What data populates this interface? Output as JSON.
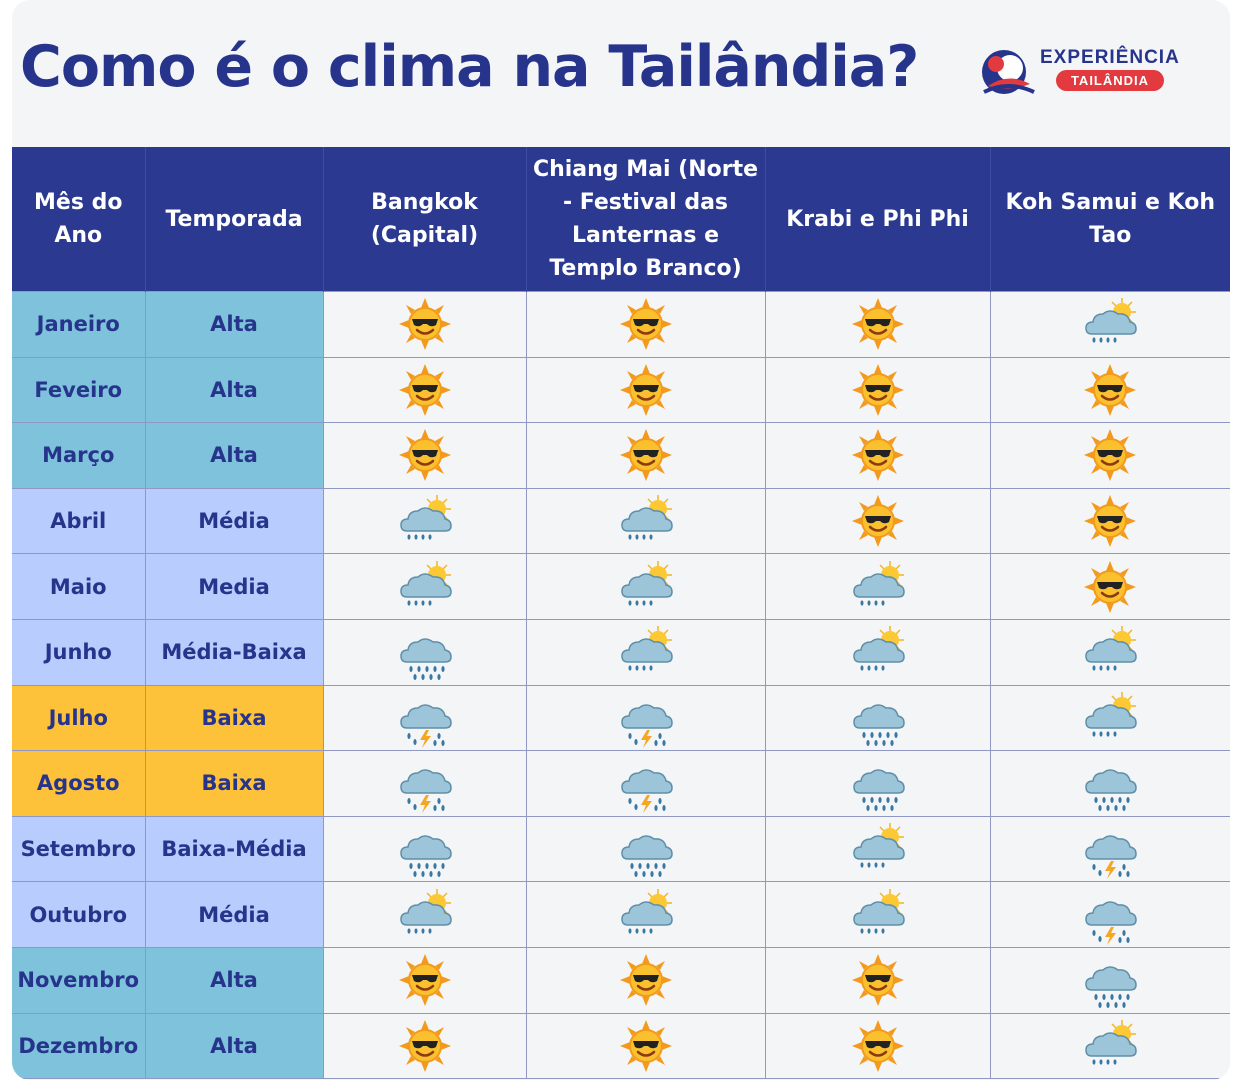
{
  "title": "Como é o clima na Tailândia?",
  "brand": {
    "name": "EXPERIÊNCIA",
    "badge": "TAILÂNDIA",
    "color": "#27348b",
    "badge_color": "#e23a3f"
  },
  "colors": {
    "header": "#2b3990",
    "alta": "#7ec2dc",
    "media": "#b8cdfd",
    "baixa": "#fdc23a",
    "text": "#27348b"
  },
  "table": {
    "headers": [
      "Mês do Ano",
      "Temporada",
      "Bangkok (Capital)",
      "Chiang Mai (Norte - Festival das Lanternas e Templo Branco)",
      "Krabi e Phi Phi",
      "Koh Samui e Koh Tao"
    ],
    "rows": [
      {
        "month": "Janeiro",
        "season": "Alta",
        "season_class": "alta",
        "weather": [
          "sun-icon",
          "sun-icon",
          "sun-icon",
          "sun-cloud-rain-icon"
        ]
      },
      {
        "month": "Feveiro",
        "season": "Alta",
        "season_class": "alta",
        "weather": [
          "sun-icon",
          "sun-icon",
          "sun-icon",
          "sun-icon"
        ]
      },
      {
        "month": "Março",
        "season": "Alta",
        "season_class": "alta",
        "weather": [
          "sun-icon",
          "sun-icon",
          "sun-icon",
          "sun-icon"
        ]
      },
      {
        "month": "Abril",
        "season": "Média",
        "season_class": "media",
        "weather": [
          "sun-cloud-rain-icon",
          "sun-cloud-rain-icon",
          "sun-icon",
          "sun-icon"
        ]
      },
      {
        "month": "Maio",
        "season": "Media",
        "season_class": "media",
        "weather": [
          "sun-cloud-rain-icon",
          "sun-cloud-rain-icon",
          "sun-cloud-rain-icon",
          "sun-icon"
        ]
      },
      {
        "month": "Junho",
        "season": "Média-Baixa",
        "season_class": "media",
        "weather": [
          "rain-cloud-icon",
          "sun-cloud-rain-icon",
          "sun-cloud-rain-icon",
          "sun-cloud-rain-icon"
        ]
      },
      {
        "month": "Julho",
        "season": "Baixa",
        "season_class": "baixa",
        "weather": [
          "storm-cloud-icon",
          "storm-cloud-icon",
          "rain-cloud-icon",
          "sun-cloud-rain-icon"
        ]
      },
      {
        "month": "Agosto",
        "season": "Baixa",
        "season_class": "baixa",
        "weather": [
          "storm-cloud-icon",
          "storm-cloud-icon",
          "rain-cloud-icon",
          "rain-cloud-icon"
        ]
      },
      {
        "month": "Setembro",
        "season": "Baixa-Média",
        "season_class": "media",
        "weather": [
          "rain-cloud-icon",
          "rain-cloud-icon",
          "sun-cloud-rain-icon",
          "storm-cloud-icon"
        ]
      },
      {
        "month": "Outubro",
        "season": "Média",
        "season_class": "media",
        "weather": [
          "sun-cloud-rain-icon",
          "sun-cloud-rain-icon",
          "sun-cloud-rain-icon",
          "storm-cloud-icon"
        ]
      },
      {
        "month": "Novembro",
        "season": "Alta",
        "season_class": "alta",
        "weather": [
          "sun-icon",
          "sun-icon",
          "sun-icon",
          "rain-cloud-icon"
        ]
      },
      {
        "month": "Dezembro",
        "season": "Alta",
        "season_class": "alta",
        "weather": [
          "sun-icon",
          "sun-icon",
          "sun-icon",
          "sun-cloud-rain-icon"
        ]
      }
    ]
  }
}
